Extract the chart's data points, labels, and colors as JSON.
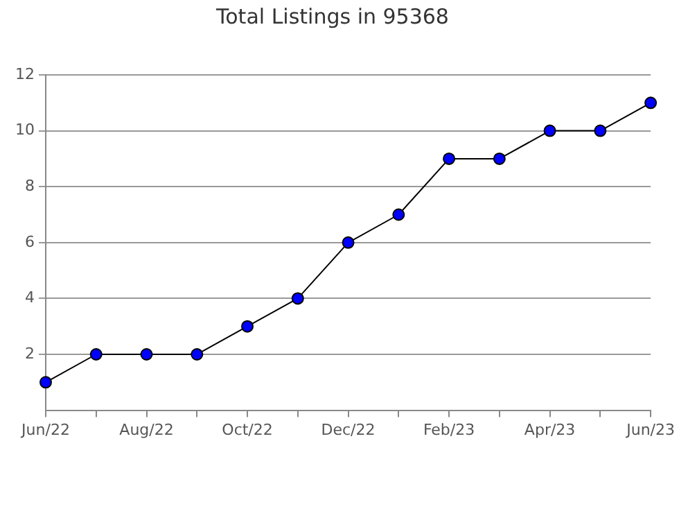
{
  "chart_data": {
    "type": "line",
    "title": "Total Listings in 95368",
    "categories": [
      "Jun/22",
      null,
      "Aug/22",
      null,
      "Oct/22",
      null,
      "Dec/22",
      null,
      "Feb/23",
      null,
      "Apr/23",
      null,
      "Jun/23"
    ],
    "series": [
      {
        "color": "#0000ff",
        "values": [
          1,
          2,
          2,
          2,
          3,
          4,
          6,
          7,
          9,
          9,
          10,
          10,
          11
        ]
      }
    ],
    "ylim": [
      0,
      12
    ],
    "yticks": [
      2,
      4,
      6,
      8,
      10,
      12
    ],
    "grid": "y",
    "legend": false,
    "marker": "circle",
    "line_style": "solid"
  }
}
